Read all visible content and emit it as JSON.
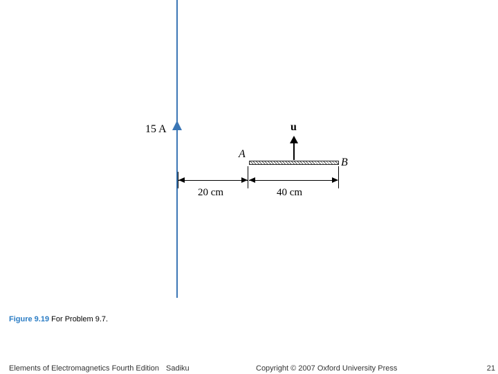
{
  "diagram": {
    "type": "diagram",
    "current_label": "15 A",
    "velocity_label": "u",
    "point_a": "A",
    "point_b": "B",
    "dim1_label": "20 cm",
    "dim2_label": "40 cm",
    "colors": {
      "wire": "#3a76b5",
      "text": "#000000",
      "background": "#ffffff"
    }
  },
  "caption": {
    "figure_num": "Figure 9.19",
    "figure_text": " For Problem 9.7."
  },
  "footer": {
    "book": "Elements of Electromagnetics Fourth Edition",
    "author": "Sadiku",
    "copyright": "Copyright © 2007 Oxford University Press",
    "page": "21"
  }
}
